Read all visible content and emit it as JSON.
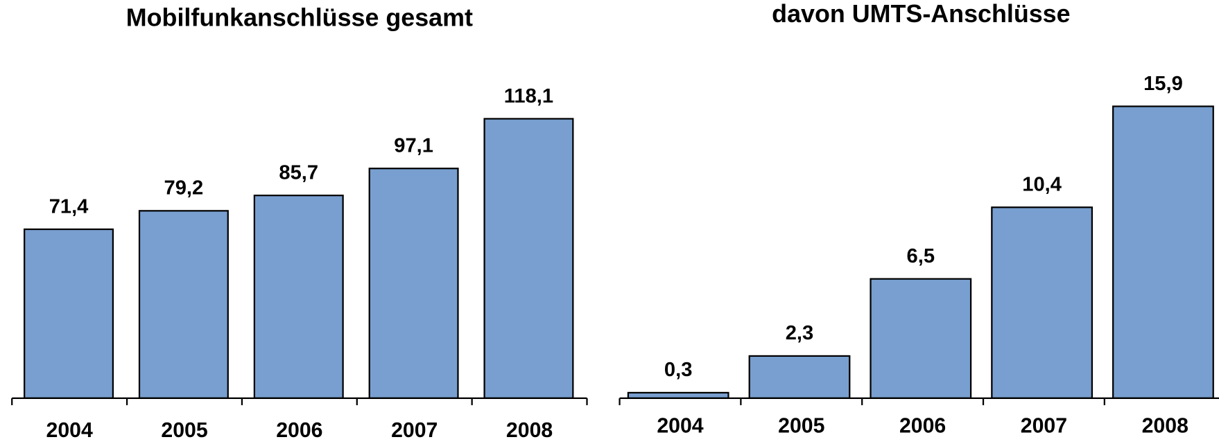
{
  "chart_data": [
    {
      "type": "bar",
      "title": "Mobilfunkanschlüsse gesamt",
      "categories": [
        "2004",
        "2005",
        "2006",
        "2007",
        "2008"
      ],
      "values": [
        71.4,
        79.2,
        85.7,
        97.1,
        118.1
      ],
      "value_labels": [
        "71,4",
        "79,2",
        "85,7",
        "97,1",
        "118,1"
      ],
      "color": "#789fcf"
    },
    {
      "type": "bar",
      "title": "davon UMTS-Anschlüsse",
      "categories": [
        "2004",
        "2005",
        "2006",
        "2007",
        "2008"
      ],
      "values": [
        0.3,
        2.3,
        6.5,
        10.4,
        15.9
      ],
      "value_labels": [
        "0,3",
        "2,3",
        "6,5",
        "10,4",
        "15,9"
      ],
      "color": "#789fcf"
    }
  ]
}
